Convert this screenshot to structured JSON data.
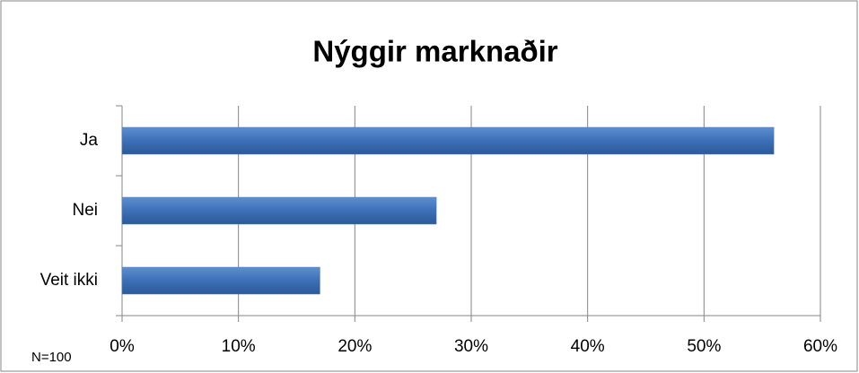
{
  "chart_data": {
    "type": "bar",
    "orientation": "horizontal",
    "title": "Nýggir marknaðir",
    "annotation": "N=100",
    "categories": [
      "Ja",
      "Nei",
      "Veit ikki"
    ],
    "values": [
      56,
      27,
      17
    ],
    "color": "#4a7ebb",
    "xlim": [
      0,
      60
    ],
    "xticks": [
      {
        "value": 0,
        "label": "0%"
      },
      {
        "value": 10,
        "label": "10%"
      },
      {
        "value": 20,
        "label": "20%"
      },
      {
        "value": 30,
        "label": "30%"
      },
      {
        "value": 40,
        "label": "40%"
      },
      {
        "value": 50,
        "label": "50%"
      },
      {
        "value": 60,
        "label": "60%"
      }
    ],
    "grid": true
  }
}
